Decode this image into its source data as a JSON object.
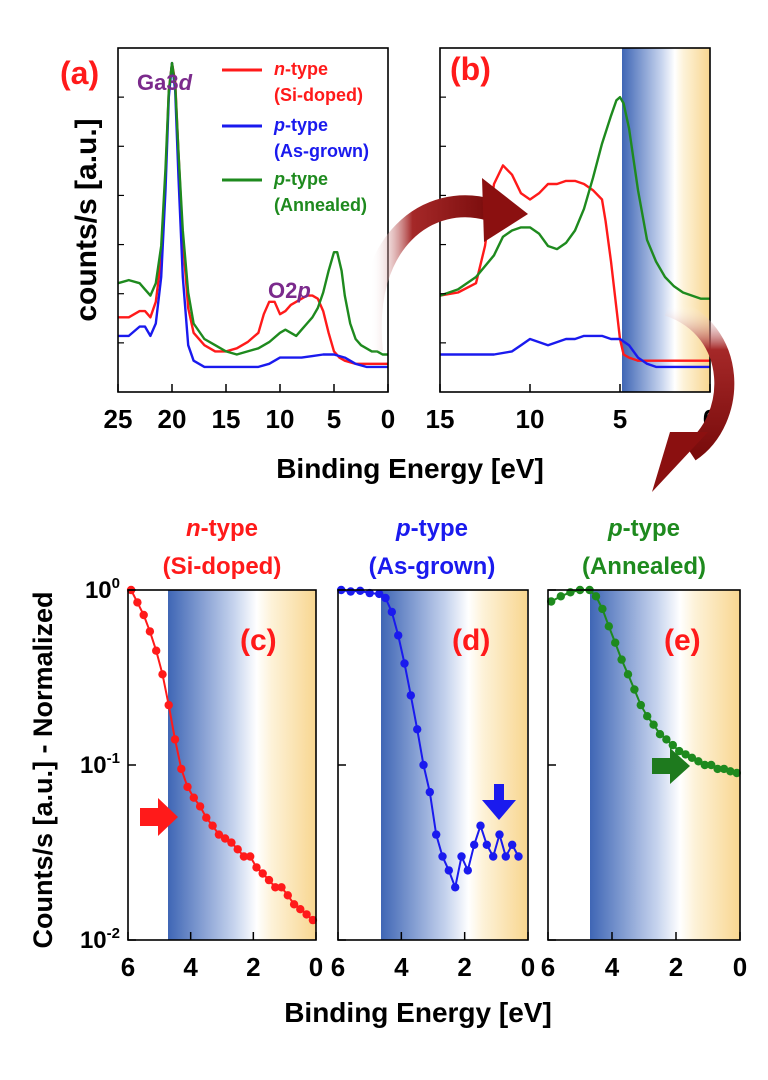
{
  "figure": {
    "top_xlabel": "Binding Energy [eV]",
    "top_ylabel": "counts/s [a.u.]",
    "bottom_xlabel": "Binding Energy  [eV]",
    "bottom_ylabel": "Counts/s [a.u.] - Normalized",
    "annotations": {
      "ga3d_prefix": "Ga3",
      "ga3d_orbital": "d",
      "o2p_prefix": "O2",
      "o2p_orbital": "p"
    }
  },
  "colors": {
    "n_type": "#ff1a1a",
    "p_asgrown": "#1a1aee",
    "p_annealed": "#1e8a1e",
    "label_purple": "#7b2a8c",
    "arrow": "#8b1010"
  },
  "legend": [
    {
      "key": "n",
      "line1_italic": "n",
      "line1_rest": "-type",
      "line2": "(Si-doped)",
      "color": "#ff1a1a"
    },
    {
      "key": "pa",
      "line1_italic": "p",
      "line1_rest": "-type",
      "line2": "(As-grown)",
      "color": "#1a1aee"
    },
    {
      "key": "pn",
      "line1_italic": "p",
      "line1_rest": "-type",
      "line2": "(Annealed)",
      "color": "#1e8a1e"
    }
  ],
  "chart_data": [
    {
      "panel": "(a)",
      "type": "line",
      "xlim": [
        25,
        0
      ],
      "x_reversed": true,
      "y_ticks_labeled": false,
      "xticks": [
        "25",
        "20",
        "15",
        "10",
        "5",
        "0"
      ],
      "series": [
        {
          "name": "n-type (Si-doped)",
          "x": [
            25,
            24,
            23,
            22.5,
            22,
            21.5,
            21,
            20.6,
            20.3,
            20,
            19.7,
            19.4,
            19,
            18.5,
            18,
            17,
            16,
            15,
            14,
            13,
            12,
            11.5,
            11,
            10.5,
            10,
            9.5,
            9,
            8.5,
            8,
            7.5,
            7,
            6.5,
            6,
            5.5,
            5,
            4.5,
            4,
            3,
            2,
            1,
            0
          ],
          "y": [
            0.17,
            0.17,
            0.19,
            0.19,
            0.17,
            0.22,
            0.36,
            0.62,
            0.9,
            0.99,
            0.93,
            0.7,
            0.42,
            0.2,
            0.12,
            0.08,
            0.06,
            0.06,
            0.07,
            0.09,
            0.12,
            0.18,
            0.22,
            0.22,
            0.18,
            0.19,
            0.21,
            0.22,
            0.23,
            0.24,
            0.24,
            0.23,
            0.19,
            0.12,
            0.06,
            0.04,
            0.03,
            0.02,
            0.02,
            0.02,
            0.02
          ]
        },
        {
          "name": "p-type (As-grown)",
          "x": [
            25,
            24,
            23,
            22.5,
            22,
            21.5,
            21,
            20.6,
            20.3,
            20,
            19.7,
            19.4,
            19,
            18.5,
            18,
            17,
            16,
            15,
            14,
            13,
            12,
            11,
            10,
            9,
            8,
            7,
            6,
            5,
            4,
            3,
            2,
            1,
            0
          ],
          "y": [
            0.11,
            0.11,
            0.14,
            0.14,
            0.11,
            0.15,
            0.3,
            0.58,
            0.88,
            0.99,
            0.9,
            0.62,
            0.3,
            0.08,
            0.03,
            0.01,
            0.01,
            0.01,
            0.01,
            0.01,
            0.01,
            0.02,
            0.04,
            0.04,
            0.04,
            0.045,
            0.05,
            0.05,
            0.04,
            0.02,
            0.01,
            0.01,
            0.01
          ]
        },
        {
          "name": "p-type (Annealed)",
          "x": [
            25,
            24,
            23,
            22.5,
            22,
            21.5,
            21,
            20.6,
            20.3,
            20,
            19.7,
            19.4,
            19,
            18.5,
            18,
            17,
            16,
            15,
            14,
            13,
            12,
            11,
            10,
            9.5,
            9,
            8.5,
            8,
            7.5,
            7,
            6.5,
            6,
            5.5,
            5,
            4.7,
            4.3,
            4,
            3.5,
            3,
            2.5,
            2,
            1.5,
            1,
            0.5,
            0
          ],
          "y": [
            0.28,
            0.29,
            0.28,
            0.26,
            0.24,
            0.28,
            0.4,
            0.65,
            0.9,
            0.99,
            0.92,
            0.7,
            0.45,
            0.25,
            0.15,
            0.1,
            0.08,
            0.06,
            0.05,
            0.06,
            0.07,
            0.09,
            0.12,
            0.13,
            0.12,
            0.11,
            0.13,
            0.15,
            0.17,
            0.2,
            0.25,
            0.32,
            0.38,
            0.38,
            0.32,
            0.24,
            0.15,
            0.1,
            0.08,
            0.07,
            0.06,
            0.06,
            0.05,
            0.05
          ]
        }
      ]
    },
    {
      "panel": "(b)",
      "type": "line",
      "xlim": [
        15,
        0
      ],
      "x_reversed": true,
      "y_ticks_labeled": false,
      "xticks": [
        "15",
        "10",
        "5",
        "0"
      ],
      "series": [
        {
          "name": "n-type (Si-doped)",
          "x": [
            15,
            14,
            13,
            12.5,
            12,
            11.5,
            11,
            10.5,
            10,
            9.5,
            9,
            8.5,
            8,
            7.5,
            7,
            6.5,
            6,
            5.8,
            5.5,
            5.2,
            5,
            4.8,
            4.5,
            4,
            3,
            2,
            1,
            0
          ],
          "y": [
            0.24,
            0.25,
            0.28,
            0.4,
            0.6,
            0.66,
            0.63,
            0.57,
            0.55,
            0.57,
            0.6,
            0.6,
            0.61,
            0.61,
            0.6,
            0.58,
            0.55,
            0.48,
            0.35,
            0.2,
            0.1,
            0.05,
            0.04,
            0.03,
            0.03,
            0.03,
            0.03,
            0.03
          ]
        },
        {
          "name": "p-type (As-grown)",
          "x": [
            15,
            14,
            13,
            12,
            11,
            10.5,
            10,
            9.5,
            9,
            8.5,
            8,
            7.5,
            7,
            6.5,
            6,
            5.5,
            5,
            4.5,
            4,
            3.5,
            3,
            2,
            1,
            0
          ],
          "y": [
            0.05,
            0.05,
            0.05,
            0.05,
            0.06,
            0.08,
            0.1,
            0.09,
            0.08,
            0.09,
            0.1,
            0.1,
            0.11,
            0.11,
            0.11,
            0.1,
            0.1,
            0.08,
            0.04,
            0.02,
            0.01,
            0.01,
            0.01,
            0.01
          ]
        },
        {
          "name": "p-type (Annealed)",
          "x": [
            15,
            14,
            13,
            12,
            11.5,
            11,
            10.5,
            10,
            9.5,
            9,
            8.5,
            8,
            7.5,
            7,
            6.5,
            6,
            5.5,
            5.2,
            5,
            4.8,
            4.5,
            4,
            3.5,
            3,
            2.5,
            2,
            1.5,
            1,
            0.5,
            0
          ],
          "y": [
            0.24,
            0.26,
            0.3,
            0.37,
            0.43,
            0.45,
            0.46,
            0.46,
            0.44,
            0.4,
            0.39,
            0.41,
            0.45,
            0.52,
            0.62,
            0.73,
            0.82,
            0.87,
            0.88,
            0.86,
            0.78,
            0.58,
            0.42,
            0.35,
            0.3,
            0.27,
            0.25,
            0.24,
            0.23,
            0.23
          ]
        }
      ]
    },
    {
      "panel": "(c)",
      "title_italic": "n",
      "title_rest": "-type",
      "subtitle": "(Si-doped)",
      "type": "scatter",
      "xlim": [
        6,
        0
      ],
      "x_reversed": true,
      "ylim": [
        0.01,
        1
      ],
      "y_scale": "log",
      "color": "#ff1a1a",
      "xticks": [
        "6",
        "4",
        "2",
        "0"
      ],
      "yticks": [
        {
          "base": "10",
          "exp": "0",
          "value": 1
        },
        {
          "base": "10",
          "exp": "-1",
          "value": 0.1
        },
        {
          "base": "10",
          "exp": "-2",
          "value": 0.01
        }
      ],
      "x": [
        5.9,
        5.7,
        5.5,
        5.3,
        5.1,
        4.9,
        4.7,
        4.5,
        4.3,
        4.1,
        3.9,
        3.7,
        3.5,
        3.3,
        3.1,
        2.9,
        2.7,
        2.5,
        2.3,
        2.1,
        1.9,
        1.7,
        1.5,
        1.3,
        1.1,
        0.9,
        0.7,
        0.5,
        0.3,
        0.1
      ],
      "y": [
        1.0,
        0.85,
        0.72,
        0.58,
        0.45,
        0.33,
        0.22,
        0.14,
        0.095,
        0.075,
        0.065,
        0.058,
        0.05,
        0.045,
        0.04,
        0.038,
        0.036,
        0.033,
        0.03,
        0.03,
        0.026,
        0.024,
        0.022,
        0.02,
        0.02,
        0.018,
        0.016,
        0.015,
        0.014,
        0.013
      ]
    },
    {
      "panel": "(d)",
      "title_italic": "p",
      "title_rest": "-type",
      "subtitle": "(As-grown)",
      "type": "scatter",
      "xlim": [
        6,
        0
      ],
      "x_reversed": true,
      "ylim": [
        0.01,
        1
      ],
      "y_scale": "log",
      "color": "#1a1aee",
      "xticks": [
        "6",
        "4",
        "2",
        "0"
      ],
      "x": [
        5.9,
        5.6,
        5.3,
        5.0,
        4.7,
        4.5,
        4.3,
        4.1,
        3.9,
        3.7,
        3.5,
        3.3,
        3.1,
        2.9,
        2.7,
        2.5,
        2.3,
        2.1,
        1.9,
        1.7,
        1.5,
        1.3,
        1.1,
        0.9,
        0.7,
        0.5,
        0.3
      ],
      "y": [
        1.0,
        0.98,
        0.99,
        0.96,
        0.95,
        0.9,
        0.75,
        0.55,
        0.38,
        0.25,
        0.16,
        0.1,
        0.07,
        0.04,
        0.03,
        0.025,
        0.02,
        0.03,
        0.025,
        0.035,
        0.045,
        0.035,
        0.03,
        0.04,
        0.03,
        0.035,
        0.03
      ]
    },
    {
      "panel": "(e)",
      "title_italic": "p",
      "title_rest": "-type",
      "subtitle": "(Annealed)",
      "type": "scatter",
      "xlim": [
        6,
        0
      ],
      "x_reversed": true,
      "ylim": [
        0.01,
        1
      ],
      "y_scale": "log",
      "color": "#1e8a1e",
      "xticks": [
        "6",
        "4",
        "2",
        "0"
      ],
      "x": [
        5.9,
        5.6,
        5.3,
        5.0,
        4.7,
        4.5,
        4.3,
        4.1,
        3.9,
        3.7,
        3.5,
        3.3,
        3.1,
        2.9,
        2.7,
        2.5,
        2.3,
        2.1,
        1.9,
        1.7,
        1.5,
        1.3,
        1.1,
        0.9,
        0.7,
        0.5,
        0.3,
        0.1
      ],
      "y": [
        0.86,
        0.92,
        0.97,
        1.0,
        1.0,
        0.92,
        0.78,
        0.62,
        0.5,
        0.4,
        0.33,
        0.27,
        0.22,
        0.19,
        0.17,
        0.15,
        0.14,
        0.13,
        0.12,
        0.115,
        0.11,
        0.105,
        0.1,
        0.1,
        0.095,
        0.095,
        0.092,
        0.09
      ]
    }
  ]
}
